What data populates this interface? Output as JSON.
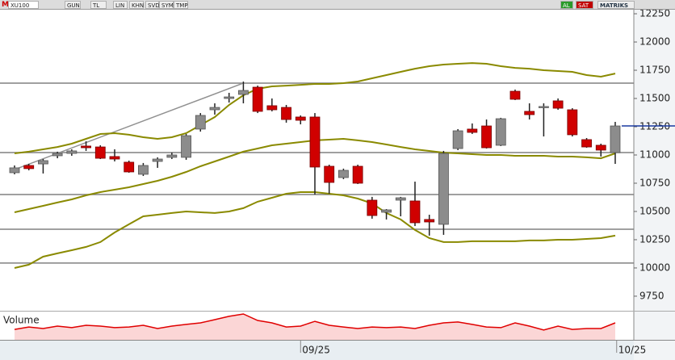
{
  "toolbar": {
    "left": [
      "M",
      "XU100",
      "GUN",
      "TL",
      "LIN",
      "KHN",
      "SVD",
      "SYM",
      "TMP"
    ],
    "right": [
      "AL",
      "SAT",
      "MATRIKS"
    ]
  },
  "chart_data": {
    "type": "candlestick",
    "open": [
      10843,
      10907,
      10921,
      10993,
      11014,
      11079,
      11071,
      10986,
      10936,
      10829,
      10943,
      10979,
      10979,
      11229,
      11400,
      11500,
      11536,
      11600,
      11436,
      11421,
      11336,
      11336,
      10900,
      10800,
      10900,
      10600,
      10493,
      10600,
      10593,
      10429,
      10386,
      11057,
      11229,
      11257,
      11086,
      11564,
      11386,
      11421,
      11479,
      11400,
      11136,
      11086,
      11021
    ],
    "high": [
      10907,
      10921,
      10964,
      11029,
      11050,
      11121,
      11086,
      11050,
      10950,
      10929,
      10979,
      11021,
      11186,
      11371,
      11457,
      11550,
      11650,
      11614,
      11500,
      11443,
      11350,
      11371,
      10914,
      10879,
      10914,
      10629,
      10521,
      10629,
      10764,
      10471,
      11036,
      11229,
      11279,
      11314,
      11329,
      11579,
      11457,
      11457,
      11500,
      11414,
      11150,
      11100,
      11293
    ],
    "low": [
      10829,
      10864,
      10836,
      10971,
      10993,
      11036,
      10964,
      10943,
      10843,
      10814,
      10886,
      10964,
      10957,
      11207,
      11357,
      11464,
      11457,
      11371,
      11386,
      11286,
      11271,
      10650,
      10657,
      10786,
      10743,
      10436,
      10429,
      10457,
      10371,
      10286,
      10293,
      11043,
      11186,
      11057,
      11079,
      11486,
      11314,
      11164,
      11400,
      11164,
      11064,
      10986,
      10921
    ],
    "close": [
      10886,
      10879,
      10950,
      11014,
      11036,
      11064,
      10971,
      10964,
      10850,
      10907,
      10964,
      11000,
      11171,
      11350,
      11421,
      11514,
      11571,
      11386,
      11400,
      11314,
      11307,
      10893,
      10757,
      10864,
      10750,
      10464,
      10514,
      10621,
      10400,
      10407,
      11014,
      11214,
      11200,
      11064,
      11321,
      11493,
      11357,
      11429,
      11414,
      11179,
      11071,
      11043,
      11257
    ],
    "up_color": "#8c8c8c",
    "down_color": "#d00000",
    "bands": {
      "color": "#8a8a00",
      "upper": [
        11014,
        11029,
        11050,
        11071,
        11100,
        11143,
        11186,
        11193,
        11179,
        11157,
        11143,
        11157,
        11193,
        11264,
        11336,
        11443,
        11529,
        11586,
        11607,
        11614,
        11621,
        11629,
        11629,
        11636,
        11650,
        11679,
        11707,
        11736,
        11764,
        11786,
        11800,
        11807,
        11814,
        11807,
        11786,
        11771,
        11764,
        11750,
        11743,
        11736,
        11707,
        11693,
        11721
      ],
      "middle": [
        10493,
        10521,
        10550,
        10579,
        10607,
        10643,
        10671,
        10693,
        10714,
        10743,
        10771,
        10807,
        10850,
        10900,
        10943,
        10986,
        11029,
        11057,
        11086,
        11100,
        11114,
        11129,
        11136,
        11143,
        11129,
        11114,
        11093,
        11071,
        11050,
        11036,
        11021,
        11014,
        11007,
        11000,
        11000,
        10993,
        10993,
        10993,
        10986,
        10986,
        10979,
        10971,
        11014
      ],
      "lower": [
        10000,
        10029,
        10100,
        10129,
        10157,
        10186,
        10229,
        10314,
        10386,
        10457,
        10471,
        10486,
        10500,
        10493,
        10486,
        10500,
        10529,
        10586,
        10621,
        10657,
        10671,
        10671,
        10657,
        10643,
        10614,
        10571,
        10486,
        10429,
        10336,
        10264,
        10229,
        10229,
        10236,
        10236,
        10236,
        10236,
        10243,
        10243,
        10250,
        10250,
        10257,
        10264,
        10286
      ]
    },
    "levels": [
      11636,
      11021,
      10650,
      10343,
      10043
    ],
    "level_color": "#808080",
    "trendline": {
      "x": [
        0,
        16
      ],
      "y": [
        10871,
        11636
      ],
      "color": "#909090"
    },
    "ylim": [
      9621,
      12286
    ],
    "yticks": [
      9750,
      10000,
      10250,
      10500,
      10750,
      11000,
      11250,
      11500,
      11750,
      12000,
      12250
    ],
    "xlim": [
      -1.016,
      43.3
    ],
    "xticks": [
      {
        "value": 20,
        "label": "09/25"
      },
      {
        "value": 42.1,
        "label": "10/25"
      }
    ],
    "volume": {
      "label": "Volume",
      "color": "#e00000",
      "ylim": [
        0,
        20
      ],
      "values": [
        7.4,
        9.1,
        8.0,
        9.7,
        8.6,
        10.3,
        9.7,
        8.6,
        9.1,
        10.3,
        8.0,
        9.7,
        10.9,
        12.0,
        14.3,
        16.6,
        18.3,
        13.7,
        12.0,
        9.1,
        9.7,
        13.1,
        10.3,
        9.1,
        8.0,
        9.1,
        8.6,
        9.1,
        8.0,
        10.3,
        12.0,
        12.6,
        10.9,
        9.1,
        8.6,
        12.0,
        9.7,
        6.9,
        9.7,
        7.4,
        8.0,
        8.0,
        12.0
      ]
    }
  }
}
